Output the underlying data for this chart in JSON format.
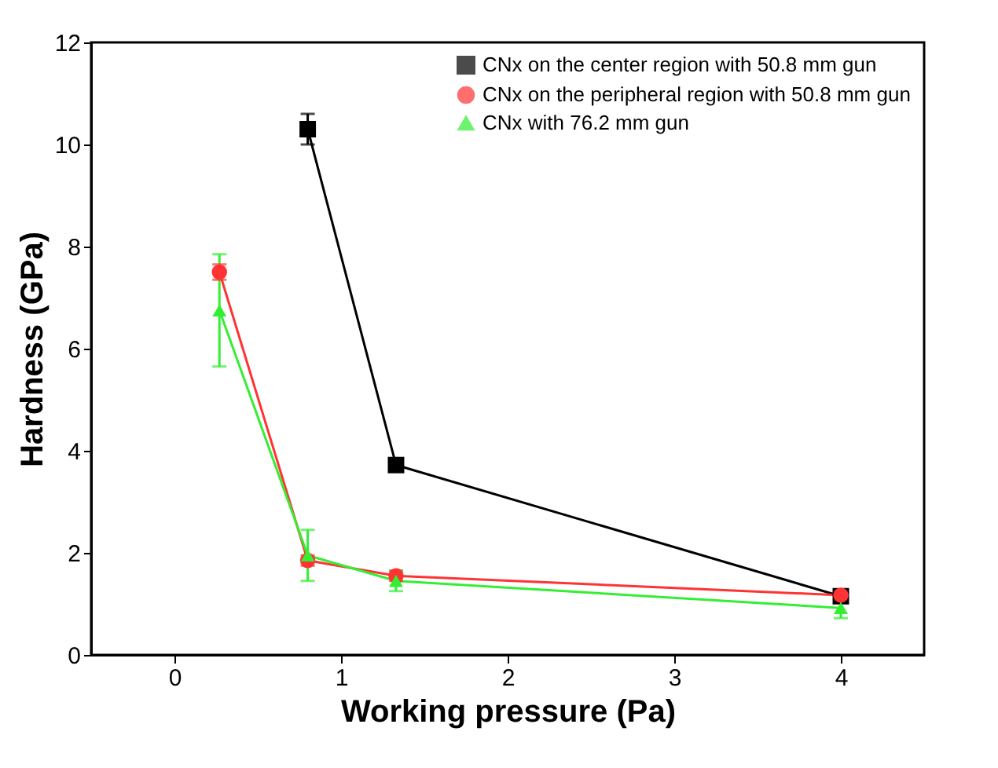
{
  "chart_data": {
    "type": "line",
    "xlabel": "Working pressure (Pa)",
    "ylabel": "Hardness (GPa)",
    "xlim": [
      -0.5,
      4.5
    ],
    "xticks": [
      0,
      1,
      2,
      3,
      4
    ],
    "ylim": [
      0,
      12
    ],
    "yticks": [
      0,
      2,
      4,
      6,
      8,
      10,
      12
    ],
    "grid": false,
    "legend": "top right",
    "series": [
      {
        "name": "CNx on the center region with 50.8 mm gun",
        "color": "#000000",
        "marker": "square",
        "x": [
          0.8,
          1.33,
          4
        ],
        "values": [
          10.3,
          3.72,
          1.15
        ],
        "errors": [
          0.3,
          0.1,
          null
        ]
      },
      {
        "name": "CNx on the peripheral region with 50.8 mm gun",
        "color": "#ff3333",
        "marker": "circle",
        "x": [
          0.27,
          0.8,
          1.33,
          4
        ],
        "values": [
          7.5,
          1.85,
          1.55,
          1.17
        ],
        "errors": [
          0.15,
          0.1,
          0.1,
          null
        ]
      },
      {
        "name": "CNx with 76.2 mm gun",
        "color": "#33ee33",
        "marker": "triangle",
        "x": [
          0.27,
          0.8,
          1.33,
          4
        ],
        "values": [
          6.75,
          1.95,
          1.45,
          0.92
        ],
        "errors": [
          [
            5.65,
            7.85
          ],
          [
            1.45,
            2.45
          ],
          [
            1.25,
            1.65
          ],
          [
            0.72,
            1.12
          ]
        ]
      }
    ]
  }
}
